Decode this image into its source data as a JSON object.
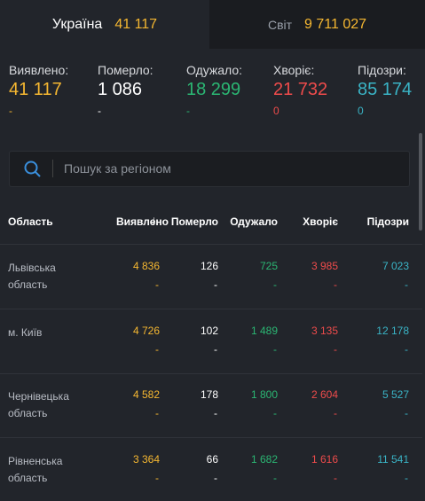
{
  "tabs": [
    {
      "label": "Україна",
      "value": "41 117"
    },
    {
      "label": "Світ",
      "value": "9 711 027"
    }
  ],
  "stats": [
    {
      "label": "Виявлено:",
      "value": "41 117",
      "delta": "-"
    },
    {
      "label": "Померло:",
      "value": "1 086",
      "delta": "-"
    },
    {
      "label": "Одужало:",
      "value": "18 299",
      "delta": "-"
    },
    {
      "label": "Хворіє:",
      "value": "21 732",
      "delta": "0"
    },
    {
      "label": "Підозри:",
      "value": "85 174",
      "delta": "0"
    }
  ],
  "search": {
    "placeholder": "Пошук за регіоном"
  },
  "table": {
    "columns": [
      "Область",
      "Виявлено",
      "Померло",
      "Одужало",
      "Хворіє",
      "Підозри"
    ],
    "sort_indicator": "↓",
    "rows": [
      {
        "region": "Львівська область",
        "cells": [
          {
            "value": "4 836",
            "delta": "-"
          },
          {
            "value": "126",
            "delta": "-"
          },
          {
            "value": "725",
            "delta": "-"
          },
          {
            "value": "3 985",
            "delta": "-"
          },
          {
            "value": "7 023",
            "delta": "-"
          }
        ]
      },
      {
        "region": "м. Київ",
        "cells": [
          {
            "value": "4 726",
            "delta": "-"
          },
          {
            "value": "102",
            "delta": "-"
          },
          {
            "value": "1 489",
            "delta": "-"
          },
          {
            "value": "3 135",
            "delta": "-"
          },
          {
            "value": "12 178",
            "delta": "-"
          }
        ]
      },
      {
        "region": "Чернівецька область",
        "cells": [
          {
            "value": "4 582",
            "delta": "-"
          },
          {
            "value": "178",
            "delta": "-"
          },
          {
            "value": "1 800",
            "delta": "-"
          },
          {
            "value": "2 604",
            "delta": "-"
          },
          {
            "value": "5 527",
            "delta": "-"
          }
        ]
      },
      {
        "region": "Рівненська область",
        "cells": [
          {
            "value": "3 364",
            "delta": "-"
          },
          {
            "value": "66",
            "delta": "-"
          },
          {
            "value": "1 682",
            "delta": "-"
          },
          {
            "value": "1 616",
            "delta": "-"
          },
          {
            "value": "11 541",
            "delta": "-"
          }
        ]
      }
    ]
  }
}
